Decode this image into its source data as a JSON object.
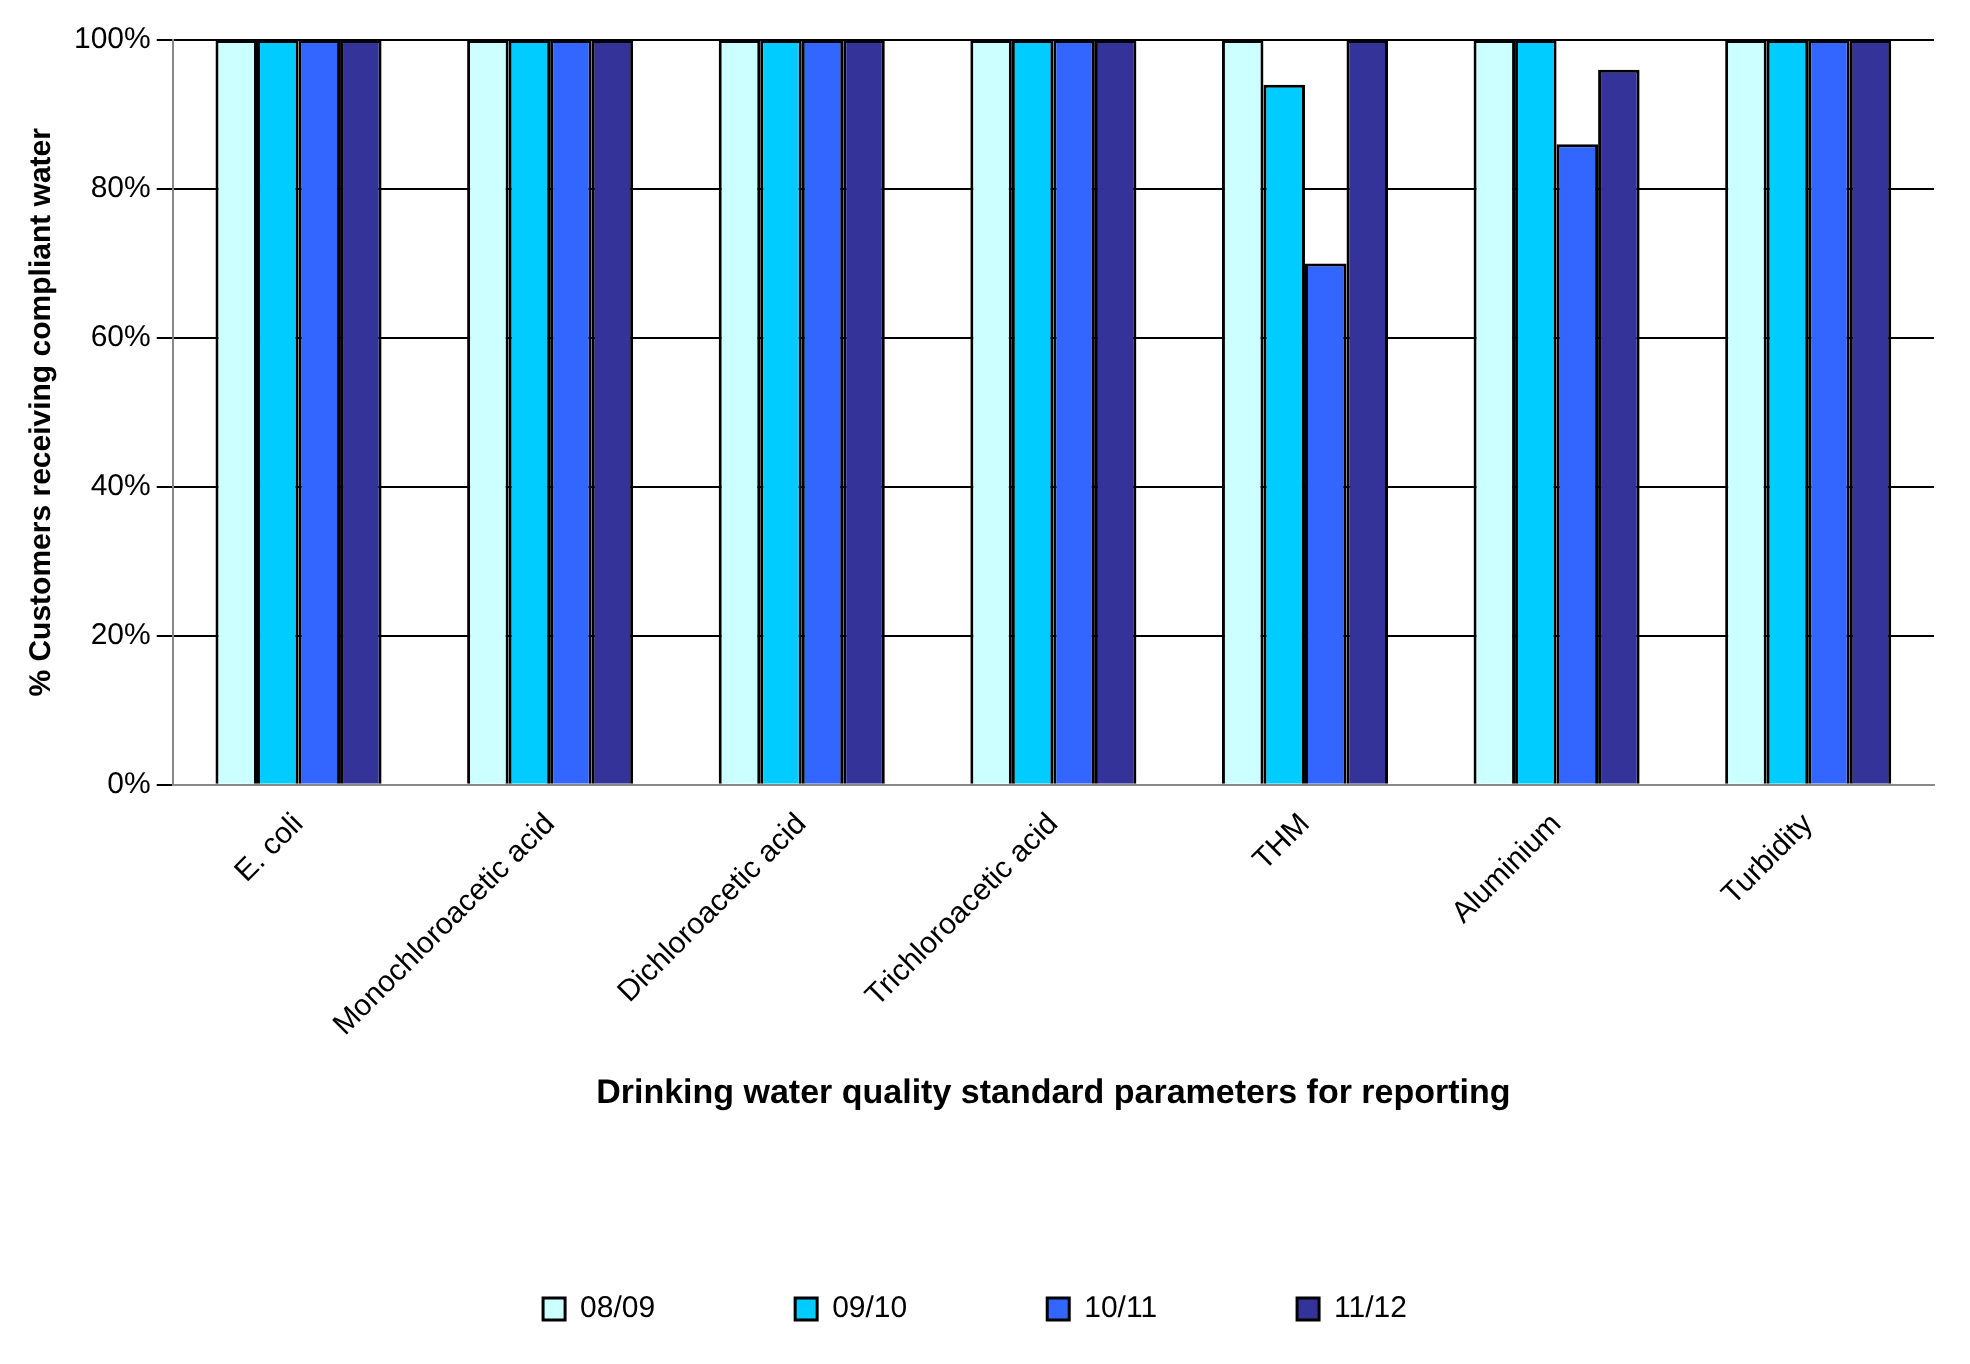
{
  "chart_data": {
    "type": "bar",
    "xlabel": "Drinking water quality standard parameters for reporting",
    "ylabel": "% Customers receiving compliant water",
    "categories": [
      "E. coli",
      "Monochloroacetic acid",
      "Dichloroacetic acid",
      "Trichloroacetic acid",
      "THM",
      "Aluminium",
      "Turbidity"
    ],
    "series": [
      {
        "name": "08/09",
        "color": "#ccffff",
        "values": [
          100,
          100,
          100,
          100,
          100,
          100,
          100
        ]
      },
      {
        "name": "09/10",
        "color": "#00ccff",
        "values": [
          100,
          100,
          100,
          100,
          94,
          100,
          100
        ]
      },
      {
        "name": "10/11",
        "color": "#3366ff",
        "values": [
          100,
          100,
          100,
          100,
          70,
          86,
          100
        ]
      },
      {
        "name": "11/12",
        "color": "#333399",
        "values": [
          100,
          100,
          100,
          100,
          100,
          96,
          100
        ]
      }
    ],
    "ylim": [
      0,
      100
    ],
    "yticks": [
      {
        "value": 0,
        "label": "0%"
      },
      {
        "value": 20,
        "label": "20%"
      },
      {
        "value": 40,
        "label": "40%"
      },
      {
        "value": 60,
        "label": "60%"
      },
      {
        "value": 80,
        "label": "80%"
      },
      {
        "value": 100,
        "label": "100%"
      }
    ],
    "grid": "y",
    "legend": "bottom"
  }
}
